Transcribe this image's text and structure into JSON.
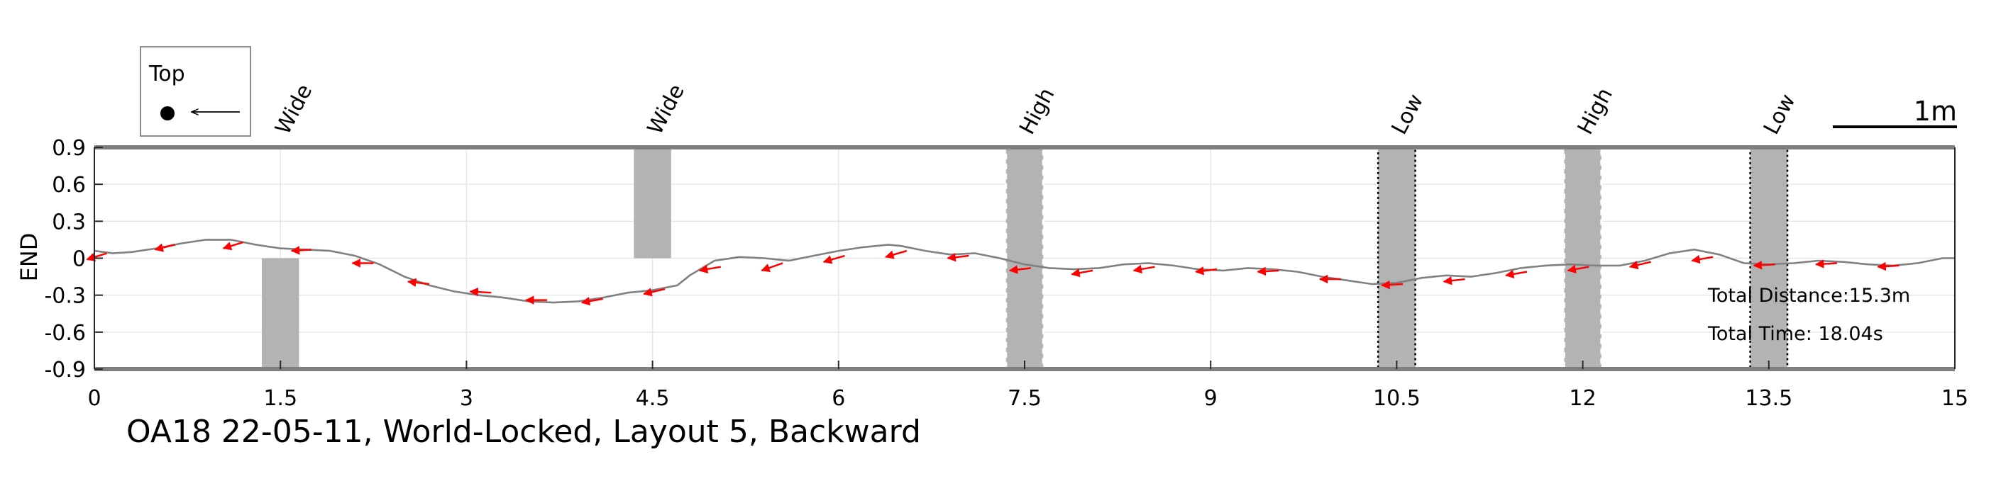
{
  "chart_data": {
    "type": "line",
    "title": "OA18 22-05-11, World-Locked, Layout 5, Backward",
    "xlabel": "",
    "ylabel": "END",
    "xlim": [
      0,
      15
    ],
    "ylim": [
      -0.9,
      0.9
    ],
    "x_ticks": [
      "0",
      "1.5",
      "3",
      "4.5",
      "6",
      "7.5",
      "9",
      "10.5",
      "12",
      "13.5",
      "15"
    ],
    "y_ticks": [
      "0.9",
      "0.6",
      "0.3",
      "0",
      "-0.3",
      "-0.6",
      "-0.9"
    ],
    "grid": true,
    "legend": {
      "placement": "top-left",
      "label": "Top",
      "marker": "dot-with-left-arrow"
    },
    "scale_bar": {
      "label": "1m",
      "length": 1
    },
    "annotations": {
      "total_distance": "Total Distance:15.3m",
      "total_time": "Total Time: 18.04s"
    },
    "obstacles": [
      {
        "label": "Wide",
        "x_start": 1.35,
        "x_end": 1.65,
        "y_start": -0.9,
        "y_end": 0,
        "style": "solid"
      },
      {
        "label": "Wide",
        "x_start": 4.35,
        "x_end": 4.65,
        "y_start": 0,
        "y_end": 0.9,
        "style": "solid"
      },
      {
        "label": "High",
        "x_start": 7.35,
        "x_end": 7.65,
        "y_start": -0.9,
        "y_end": 0.9,
        "style": "dashed-white"
      },
      {
        "label": "Low",
        "x_start": 10.35,
        "x_end": 10.65,
        "y_start": -0.9,
        "y_end": 0.9,
        "style": "dotted-black"
      },
      {
        "label": "High",
        "x_start": 11.85,
        "x_end": 12.15,
        "y_start": -0.9,
        "y_end": 0.9,
        "style": "dashed-white"
      },
      {
        "label": "Low",
        "x_start": 13.35,
        "x_end": 13.65,
        "y_start": -0.9,
        "y_end": 0.9,
        "style": "dotted-black"
      }
    ],
    "series": [
      {
        "color": "#808080",
        "x": [
          0,
          0.15,
          0.3,
          0.5,
          0.7,
          0.9,
          1.1,
          1.3,
          1.5,
          1.7,
          1.9,
          2.1,
          2.3,
          2.5,
          2.7,
          2.9,
          3.1,
          3.3,
          3.5,
          3.7,
          3.9,
          4.1,
          4.3,
          4.5,
          4.7,
          4.8,
          4.9,
          5.0,
          5.2,
          5.4,
          5.6,
          5.8,
          6.0,
          6.2,
          6.4,
          6.5,
          6.7,
          6.9,
          7.1,
          7.3,
          7.5,
          7.7,
          7.9,
          8.1,
          8.3,
          8.5,
          8.7,
          8.9,
          9.1,
          9.3,
          9.5,
          9.7,
          9.9,
          10.1,
          10.3,
          10.5,
          10.7,
          10.9,
          11.1,
          11.3,
          11.5,
          11.7,
          11.9,
          12.1,
          12.3,
          12.5,
          12.7,
          12.9,
          13.1,
          13.3,
          13.5,
          13.7,
          13.9,
          14.1,
          14.3,
          14.5,
          14.7,
          14.9,
          15.0
        ],
        "y": [
          0.06,
          0.04,
          0.05,
          0.08,
          0.12,
          0.15,
          0.15,
          0.11,
          0.08,
          0.07,
          0.06,
          0.02,
          -0.05,
          -0.15,
          -0.22,
          -0.27,
          -0.3,
          -0.32,
          -0.35,
          -0.36,
          -0.35,
          -0.32,
          -0.28,
          -0.26,
          -0.22,
          -0.14,
          -0.08,
          -0.02,
          0.01,
          0.0,
          -0.02,
          0.02,
          0.06,
          0.09,
          0.11,
          0.1,
          0.06,
          0.03,
          0.04,
          0.0,
          -0.05,
          -0.08,
          -0.09,
          -0.08,
          -0.05,
          -0.04,
          -0.06,
          -0.09,
          -0.1,
          -0.08,
          -0.09,
          -0.11,
          -0.15,
          -0.18,
          -0.21,
          -0.2,
          -0.16,
          -0.14,
          -0.15,
          -0.12,
          -0.08,
          -0.06,
          -0.05,
          -0.06,
          -0.06,
          -0.02,
          0.04,
          0.07,
          0.03,
          -0.04,
          -0.05,
          -0.04,
          -0.02,
          -0.03,
          -0.05,
          -0.06,
          -0.04,
          0.0,
          0.0
        ]
      }
    ],
    "heading_arrows": {
      "color": "#ff0000",
      "points": [
        {
          "x": 0.1,
          "y": 0.04,
          "dx": -0.16,
          "dy": -0.05
        },
        {
          "x": 0.65,
          "y": 0.11,
          "dx": -0.16,
          "dy": -0.04
        },
        {
          "x": 1.2,
          "y": 0.13,
          "dx": -0.16,
          "dy": -0.05
        },
        {
          "x": 1.75,
          "y": 0.07,
          "dx": -0.16,
          "dy": -0.01
        },
        {
          "x": 2.25,
          "y": -0.04,
          "dx": -0.17,
          "dy": 0.0
        },
        {
          "x": 2.7,
          "y": -0.21,
          "dx": -0.17,
          "dy": 0.02
        },
        {
          "x": 3.2,
          "y": -0.28,
          "dx": -0.17,
          "dy": 0.01
        },
        {
          "x": 3.65,
          "y": -0.34,
          "dx": -0.17,
          "dy": 0.0
        },
        {
          "x": 4.1,
          "y": -0.33,
          "dx": -0.17,
          "dy": -0.03
        },
        {
          "x": 4.6,
          "y": -0.25,
          "dx": -0.17,
          "dy": -0.04
        },
        {
          "x": 5.05,
          "y": -0.07,
          "dx": -0.17,
          "dy": -0.03
        },
        {
          "x": 5.55,
          "y": -0.04,
          "dx": -0.17,
          "dy": -0.06
        },
        {
          "x": 6.05,
          "y": 0.02,
          "dx": -0.17,
          "dy": -0.05
        },
        {
          "x": 6.55,
          "y": 0.06,
          "dx": -0.17,
          "dy": -0.05
        },
        {
          "x": 7.05,
          "y": 0.02,
          "dx": -0.17,
          "dy": -0.02
        },
        {
          "x": 7.55,
          "y": -0.08,
          "dx": -0.17,
          "dy": -0.02
        },
        {
          "x": 8.05,
          "y": -0.1,
          "dx": -0.17,
          "dy": -0.03
        },
        {
          "x": 8.55,
          "y": -0.07,
          "dx": -0.17,
          "dy": -0.03
        },
        {
          "x": 9.05,
          "y": -0.09,
          "dx": -0.17,
          "dy": -0.02
        },
        {
          "x": 9.55,
          "y": -0.1,
          "dx": -0.17,
          "dy": -0.01
        },
        {
          "x": 10.05,
          "y": -0.17,
          "dx": -0.17,
          "dy": 0.0
        },
        {
          "x": 10.55,
          "y": -0.21,
          "dx": -0.17,
          "dy": -0.01
        },
        {
          "x": 11.05,
          "y": -0.17,
          "dx": -0.17,
          "dy": -0.02
        },
        {
          "x": 11.55,
          "y": -0.11,
          "dx": -0.17,
          "dy": -0.03
        },
        {
          "x": 12.05,
          "y": -0.07,
          "dx": -0.17,
          "dy": -0.03
        },
        {
          "x": 12.55,
          "y": -0.03,
          "dx": -0.17,
          "dy": -0.04
        },
        {
          "x": 13.05,
          "y": 0.01,
          "dx": -0.17,
          "dy": -0.03
        },
        {
          "x": 13.55,
          "y": -0.05,
          "dx": -0.17,
          "dy": -0.01
        },
        {
          "x": 14.05,
          "y": -0.04,
          "dx": -0.17,
          "dy": -0.01
        },
        {
          "x": 14.55,
          "y": -0.06,
          "dx": -0.17,
          "dy": -0.01
        }
      ]
    }
  }
}
